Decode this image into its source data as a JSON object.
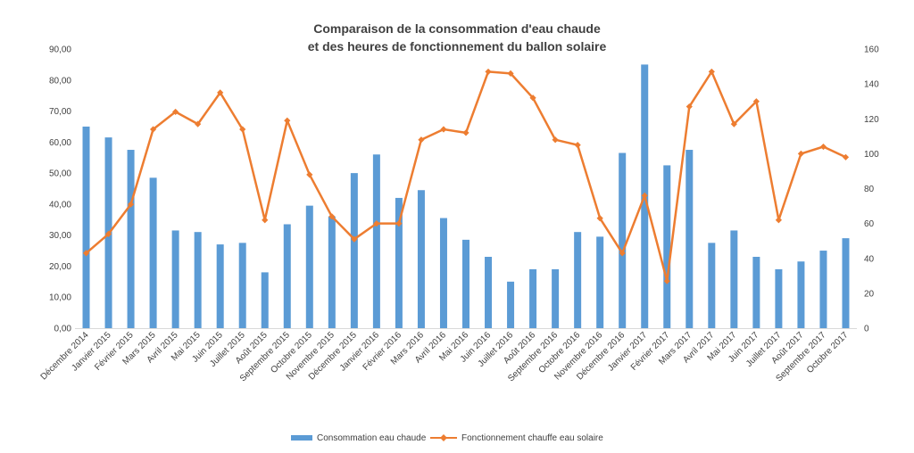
{
  "chart_data": {
    "type": "bar",
    "title_lines": [
      "Comparaison de la consommation d'eau chaude",
      "et des heures de fonctionnement du ballon solaire"
    ],
    "categories": [
      "Décembre 2014",
      "Janvier 2015",
      "Février 2015",
      "Mars 2015",
      "Avril 2015",
      "Mai 2015",
      "Juin 2015",
      "Juillet 2015",
      "Août 2015",
      "Septembre 2015",
      "Octobre 2015",
      "Novembre 2015",
      "Décembre 2015",
      "Janvier 2016",
      "Février 2016",
      "Mars 2016",
      "Avril 2016",
      "Mai 2016",
      "Juin 2016",
      "Juillet 2016",
      "Août 2016",
      "Septembre 2016",
      "Octobre 2016",
      "Novembre 2016",
      "Décembre 2016",
      "Janvier 2017",
      "Février 2017",
      "Mars 2017",
      "Avril 2017",
      "Mai 2017",
      "Juin 2017",
      "Juillet 2017",
      "Août 2017",
      "Septembre 2017",
      "Octobre 2017"
    ],
    "series": [
      {
        "name": "Consommation eau chaude",
        "type": "bar",
        "axis": "left",
        "color": "#5b9bd5",
        "values": [
          65,
          61.5,
          57.5,
          48.5,
          31.5,
          31,
          27,
          27.5,
          18,
          33.5,
          39.5,
          36,
          50,
          56,
          42,
          44.5,
          35.5,
          28.5,
          23,
          15,
          19,
          19,
          31,
          29.5,
          56.5,
          85,
          52.5,
          57.5,
          27.5,
          31.5,
          23,
          19,
          21.5,
          25,
          29
        ]
      },
      {
        "name": "Fonctionnement chauffe eau solaire",
        "type": "line",
        "axis": "right",
        "color": "#ed7d31",
        "values": [
          43,
          54,
          71,
          114,
          124,
          117,
          135,
          114,
          62,
          119,
          88,
          64,
          51,
          60,
          60,
          108,
          114,
          112,
          147,
          146,
          132,
          108,
          105,
          63,
          43,
          76,
          27,
          127,
          147,
          117,
          130,
          62,
          100,
          104,
          98
        ]
      }
    ],
    "y_left": {
      "min": 0,
      "max": 90,
      "step": 10,
      "tick_labels": [
        "0,00",
        "10,00",
        "20,00",
        "30,00",
        "40,00",
        "50,00",
        "60,00",
        "70,00",
        "80,00",
        "90,00"
      ]
    },
    "y_right": {
      "min": 0,
      "max": 160,
      "step": 20,
      "tick_labels": [
        "0",
        "20",
        "40",
        "60",
        "80",
        "100",
        "120",
        "140",
        "160"
      ]
    },
    "xlabel": "",
    "ylabel": "",
    "grid": false,
    "legend_position": "bottom"
  }
}
